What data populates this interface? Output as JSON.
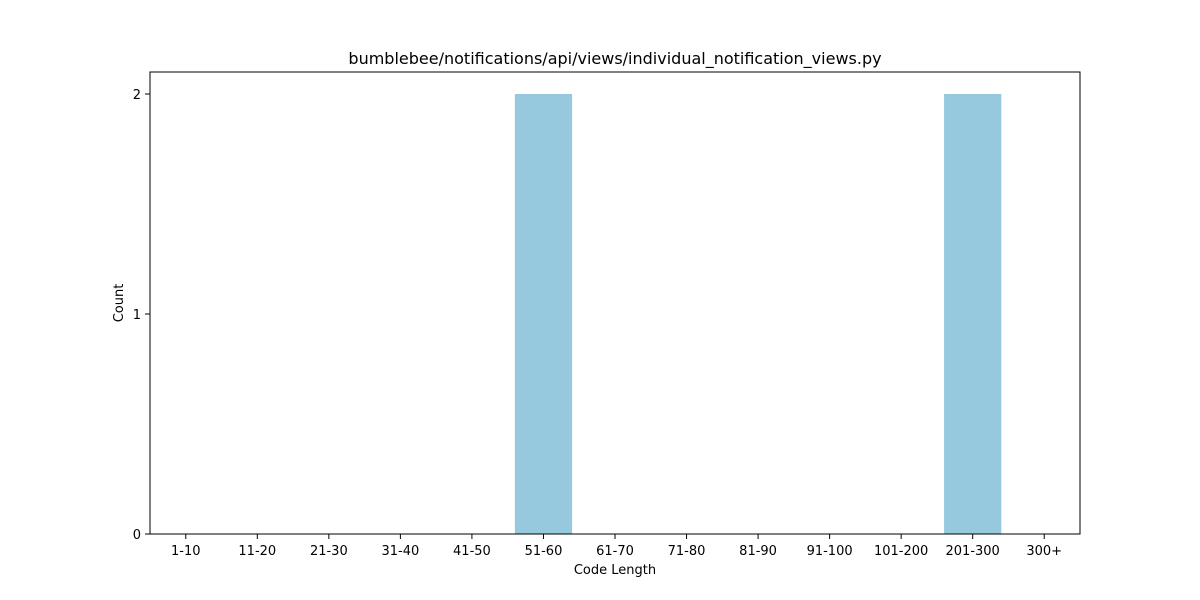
{
  "chart_data": {
    "type": "bar",
    "title": "bumblebee/notifications/api/views/individual_notification_views.py",
    "xlabel": "Code Length",
    "ylabel": "Count",
    "categories": [
      "1-10",
      "11-20",
      "21-30",
      "31-40",
      "41-50",
      "51-60",
      "61-70",
      "71-80",
      "81-90",
      "91-100",
      "101-200",
      "201-300",
      "300+"
    ],
    "values": [
      0,
      0,
      0,
      0,
      0,
      2,
      0,
      0,
      0,
      0,
      0,
      2,
      0
    ],
    "ylim": [
      0,
      2.1
    ],
    "yticks": [
      0,
      1,
      2
    ],
    "bar_color": "#96c9dd",
    "grid": false,
    "legend": "none"
  }
}
